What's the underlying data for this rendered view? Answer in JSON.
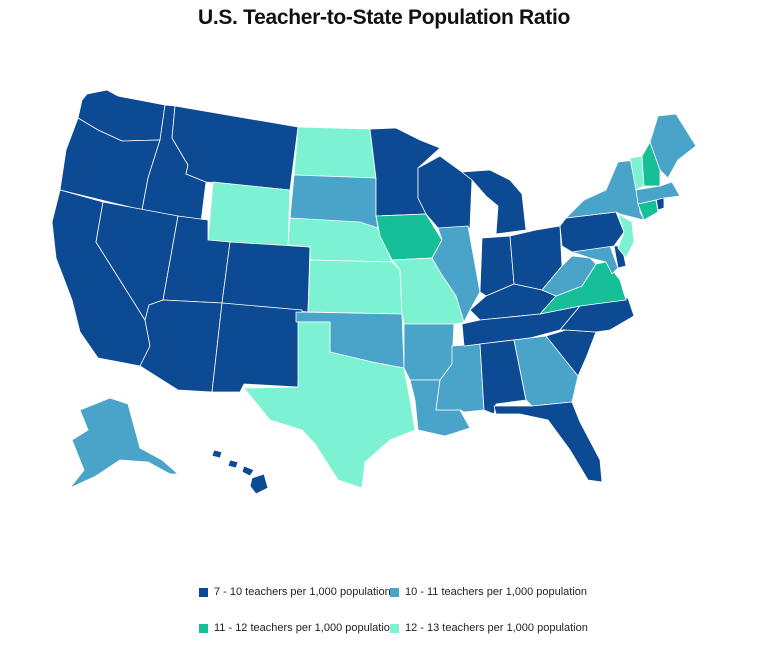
{
  "title": "U.S. Teacher-to-State Population Ratio",
  "colors": {
    "c1": "#0c4a93",
    "c2": "#4aa3c9",
    "c3": "#16bf98",
    "c4": "#7df2d2"
  },
  "legend": [
    {
      "key": "c1",
      "label": "7 - 10 teachers per 1,000 population"
    },
    {
      "key": "c2",
      "label": "10 - 11 teachers per 1,000 population"
    },
    {
      "key": "c3",
      "label": "11 - 12 teachers per 1,000 population"
    },
    {
      "key": "c4",
      "label": "12 - 13 teachers per 1,000 population"
    }
  ],
  "states": {
    "WA": "c1",
    "OR": "c1",
    "CA": "c1",
    "ID": "c1",
    "NV": "c1",
    "MT": "c1",
    "WY": "c4",
    "UT": "c1",
    "AZ": "c1",
    "CO": "c1",
    "NM": "c1",
    "ND": "c4",
    "SD": "c2",
    "NE": "c4",
    "KS": "c4",
    "OK": "c2",
    "TX": "c4",
    "MN": "c1",
    "IA": "c3",
    "MO": "c4",
    "AR": "c2",
    "LA": "c2",
    "WI": "c1",
    "IL": "c2",
    "MS": "c2",
    "MI": "c1",
    "IN": "c1",
    "OH": "c1",
    "KY": "c1",
    "TN": "c1",
    "AL": "c1",
    "GA": "c2",
    "FL": "c1",
    "SC": "c1",
    "NC": "c1",
    "VA": "c3",
    "WV": "c2",
    "MD": "c2",
    "DE": "c1",
    "PA": "c1",
    "NJ": "c4",
    "NY": "c2",
    "CT": "c3",
    "RI": "c1",
    "MA": "c2",
    "VT": "c4",
    "NH": "c3",
    "ME": "c2",
    "AK": "c2",
    "HI": "c1"
  }
}
